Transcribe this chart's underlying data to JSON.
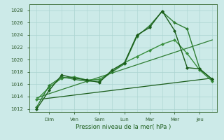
{
  "xlabel": "Pression niveau de la mer( hPa )",
  "bg_color": "#cceae8",
  "grid_color": "#aad4d0",
  "x_labels": [
    "Dim",
    "Ven",
    "Sam",
    "Lun",
    "Mar",
    "Mer",
    "Jeu"
  ],
  "ylim": [
    1011.5,
    1029.0
  ],
  "yticks": [
    1012,
    1014,
    1016,
    1018,
    1020,
    1022,
    1024,
    1026,
    1028
  ],
  "xlim": [
    -0.3,
    7.2
  ],
  "xtick_positions": [
    0.5,
    1.5,
    2.5,
    3.5,
    4.5,
    5.5,
    6.5
  ],
  "minor_xtick_positions": [
    0,
    1,
    2,
    3,
    4,
    5,
    6,
    7
  ],
  "series": [
    {
      "x": [
        0.0,
        0.5,
        1.0,
        1.5,
        2.0,
        2.5,
        3.0,
        3.5,
        4.0,
        4.5,
        5.0,
        5.5,
        6.0,
        6.5,
        7.0
      ],
      "y": [
        1012.0,
        1015.0,
        1017.5,
        1017.0,
        1016.7,
        1016.3,
        1018.3,
        1019.5,
        1024.0,
        1025.2,
        1027.9,
        1024.7,
        1018.7,
        1018.5,
        1016.8
      ],
      "color": "#1a5c1a",
      "lw": 1.0,
      "marker": "D",
      "ms": 2.0,
      "zorder": 5
    },
    {
      "x": [
        0.0,
        0.5,
        1.0,
        1.5,
        2.0,
        2.5,
        3.0,
        3.5,
        4.0,
        4.5,
        5.0,
        5.5,
        6.0,
        6.5,
        7.0
      ],
      "y": [
        1012.3,
        1015.8,
        1017.2,
        1016.8,
        1016.5,
        1016.5,
        1018.0,
        1019.3,
        1023.8,
        1025.5,
        1027.8,
        1026.0,
        1025.0,
        1018.5,
        1016.8
      ],
      "color": "#2e7d32",
      "lw": 1.0,
      "marker": "D",
      "ms": 2.0,
      "zorder": 4
    },
    {
      "x": [
        0.0,
        0.5,
        1.0,
        1.5,
        2.0,
        2.5,
        3.0,
        3.5,
        4.0,
        4.5,
        5.0,
        5.5,
        6.0,
        6.5,
        7.0
      ],
      "y": [
        1013.5,
        1015.5,
        1017.0,
        1017.2,
        1016.7,
        1016.8,
        1018.0,
        1019.5,
        1020.5,
        1021.5,
        1022.5,
        1023.2,
        1021.0,
        1018.3,
        1016.5
      ],
      "color": "#388e3c",
      "lw": 1.0,
      "marker": "D",
      "ms": 2.0,
      "zorder": 3
    },
    {
      "x": [
        0.0,
        7.0
      ],
      "y": [
        1013.5,
        1017.0
      ],
      "color": "#1a5c1a",
      "lw": 0.9,
      "marker": null,
      "ms": 0,
      "zorder": 2
    },
    {
      "x": [
        0.0,
        7.0
      ],
      "y": [
        1013.8,
        1023.2
      ],
      "color": "#2e7d32",
      "lw": 0.9,
      "marker": null,
      "ms": 0,
      "zorder": 2
    }
  ]
}
